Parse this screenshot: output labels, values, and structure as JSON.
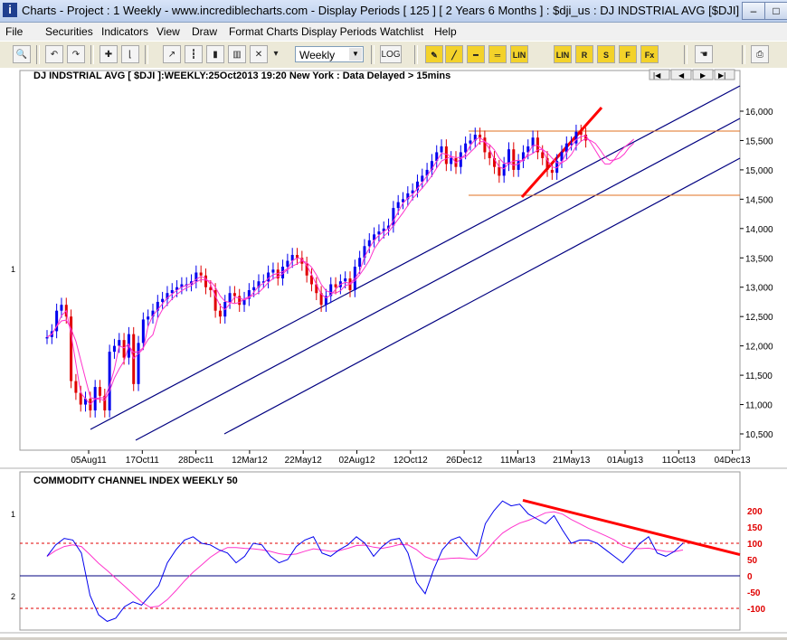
{
  "window": {
    "title": "Charts - Project : 1 Weekly - www.incrediblecharts.com - Display Periods   [ 125 ]  [ 2 Years 6 Months ] : $dji_us : DJ INDSTRIAL AVG  [$DJI]",
    "icon_letter": "i",
    "buttons": {
      "minimize": "–",
      "maximize": "□"
    }
  },
  "menu": [
    "File",
    "Securities",
    "Indicators",
    "View",
    "Draw",
    "Format Charts",
    "Display Periods",
    "Watchlist",
    "Help"
  ],
  "toolbar": {
    "period_value": "Weekly",
    "yellow_buttons": [
      "LIN",
      "LIN",
      "R",
      "S",
      "F",
      "Fx"
    ]
  },
  "chart": {
    "header": "DJ INDSTRIAL AVG [ $DJI ]:WEEKLY:25Oct2013 19:20 New York : Data Delayed > 15mins",
    "pane_labels": {
      "price": "1",
      "cci_top": "1",
      "cci_bottom": "2"
    },
    "price_ticks": [
      "16,000",
      "15,500",
      "15,000",
      "14,500",
      "14,000",
      "13,500",
      "13,000",
      "12,500",
      "12,000",
      "11,500",
      "11,000",
      "10,500"
    ],
    "date_ticks": [
      "05Aug11",
      "17Oct11",
      "28Dec11",
      "12Mar12",
      "22May12",
      "02Aug12",
      "12Oct12",
      "26Dec12",
      "11Mar13",
      "21May13",
      "01Aug13",
      "11Oct13",
      "04Dec13"
    ],
    "nav_buttons": [
      "|◀",
      "◀",
      "▶",
      "▶|"
    ],
    "colors": {
      "up": "#0000ee",
      "down": "#e00000",
      "ma": "#ff33cc",
      "channel": "#000080",
      "trend": "#ff0000",
      "hline": "#e07020"
    }
  },
  "cci": {
    "title": "COMMODITY CHANNEL INDEX WEEKLY 50",
    "ticks": [
      "200",
      "150",
      "100",
      "50",
      "0",
      "-50",
      "-100"
    ]
  }
}
